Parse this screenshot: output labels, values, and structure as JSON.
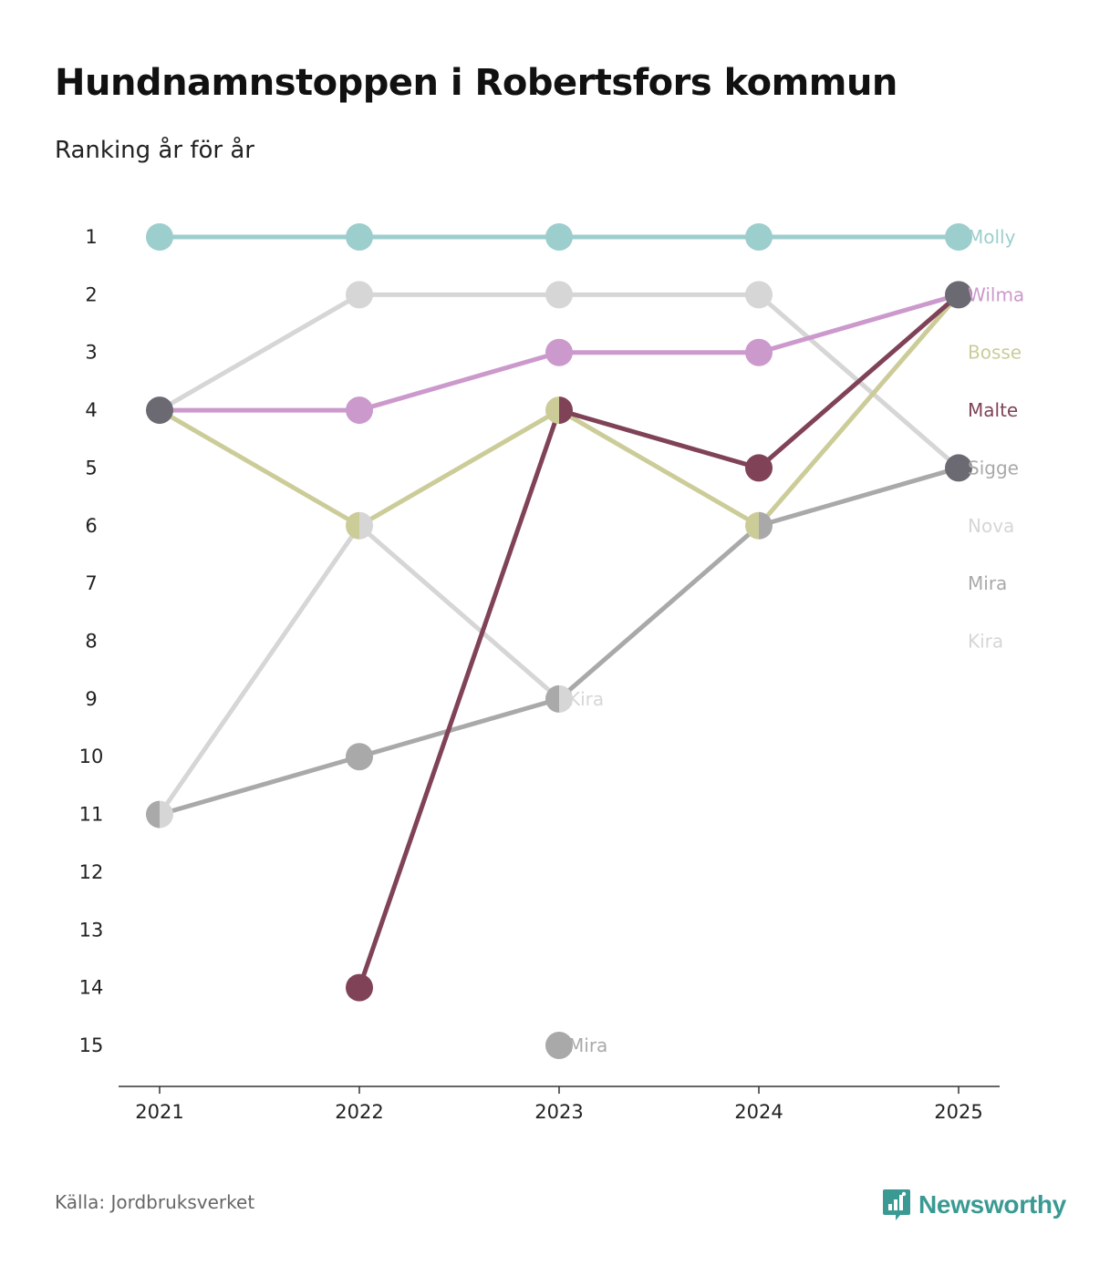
{
  "title": "Hundnamnstoppen i Robertsfors kommun",
  "subtitle": "Ranking år för år",
  "source": "Källa: Jordbruksverket",
  "brand": {
    "name": "Newsworthy",
    "icon": "newsworthy-logo-icon",
    "color": "#3a9a93"
  },
  "chart_data": {
    "type": "line",
    "chart_kind": "bump",
    "x": [
      "2021",
      "2022",
      "2023",
      "2024",
      "2025"
    ],
    "yticks": [
      1,
      2,
      3,
      4,
      5,
      6,
      7,
      8,
      9,
      10,
      11,
      12,
      13,
      14,
      15
    ],
    "ylim": [
      1,
      15
    ],
    "y_inverted": true,
    "series": [
      {
        "name": "Molly",
        "color": "#9ccecd",
        "values": [
          1,
          1,
          1,
          1,
          1
        ],
        "label_rank": 1
      },
      {
        "name": "Nova",
        "color": "#d6d6d6",
        "values": [
          4,
          2,
          2,
          2,
          5
        ],
        "label_rank": 6
      },
      {
        "name": "Kira",
        "color": "#d6d6d6",
        "values": [
          11,
          6,
          9,
          null,
          null
        ],
        "label_rank": 8,
        "inline_label_index": 2
      },
      {
        "name": "Mira",
        "color": "#a9a9a9",
        "values": [
          null,
          null,
          15,
          null,
          null
        ],
        "label_rank": 7,
        "inline_label_index": 2
      },
      {
        "name": "Sigge",
        "color": "#a9a9a9",
        "values": [
          11,
          10,
          9,
          6,
          5
        ],
        "label_rank": 5
      },
      {
        "name": "Bosse",
        "color": "#cccc99",
        "values": [
          4,
          6,
          4,
          6,
          2
        ],
        "label_rank": 3
      },
      {
        "name": "Malte",
        "color": "#7f4257",
        "values": [
          null,
          14,
          4,
          5,
          2
        ],
        "label_rank": 4
      },
      {
        "name": "Wilma",
        "color": "#cc99cc",
        "values": [
          4,
          4,
          3,
          3,
          2
        ],
        "label_rank": 2
      }
    ],
    "shared_point_color": "#6b6a73",
    "marker_colors": {
      "2021": {
        "1": [
          "#9ccecd"
        ],
        "4": [
          "#6b6a73"
        ],
        "11": [
          "#a9a9a9",
          "#d6d6d6"
        ]
      },
      "2022": {
        "1": [
          "#9ccecd"
        ],
        "2": [
          "#d6d6d6"
        ],
        "4": [
          "#cc99cc"
        ],
        "6": [
          "#cccc99",
          "#d6d6d6"
        ],
        "10": [
          "#a9a9a9"
        ],
        "14": [
          "#7f4257"
        ]
      },
      "2023": {
        "1": [
          "#9ccecd"
        ],
        "2": [
          "#d6d6d6"
        ],
        "3": [
          "#cc99cc"
        ],
        "4": [
          "#cccc99",
          "#7f4257"
        ],
        "9": [
          "#a9a9a9",
          "#d6d6d6"
        ],
        "15": [
          "#a9a9a9"
        ]
      },
      "2024": {
        "1": [
          "#9ccecd"
        ],
        "2": [
          "#d6d6d6"
        ],
        "3": [
          "#cc99cc"
        ],
        "5": [
          "#7f4257"
        ],
        "6": [
          "#cccc99",
          "#a9a9a9"
        ]
      },
      "2025": {
        "1": [
          "#9ccecd"
        ],
        "2": [
          "#6b6a73"
        ],
        "5": [
          "#6b6a73"
        ]
      }
    }
  }
}
